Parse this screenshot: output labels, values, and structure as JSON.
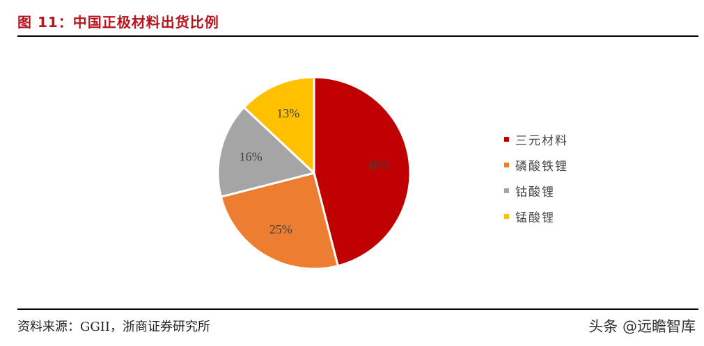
{
  "header": {
    "title": "图 11：中国正极材料出货比例"
  },
  "footer": {
    "source": "资料来源：GGII，浙商证券研究所",
    "watermark": "头条 @远瞻智库"
  },
  "chart_data": {
    "type": "pie",
    "title": "中国正极材料出货比例",
    "start_angle": "12 o'clock, clockwise",
    "categories": [
      "三元材料",
      "磷酸铁锂",
      "钴酸锂",
      "锰酸锂"
    ],
    "values": [
      46,
      25,
      16,
      13
    ],
    "labels": [
      "46%",
      "25%",
      "16%",
      "13%"
    ],
    "colors": [
      "#c00000",
      "#ed7d31",
      "#a5a5a5",
      "#ffc000"
    ],
    "legend_position": "right"
  },
  "legend": {
    "items": [
      {
        "label": "三元材料",
        "color": "#c00000"
      },
      {
        "label": "磷酸铁锂",
        "color": "#ed7d31"
      },
      {
        "label": "钴酸锂",
        "color": "#a5a5a5"
      },
      {
        "label": "锰酸锂",
        "color": "#ffc000"
      }
    ]
  }
}
